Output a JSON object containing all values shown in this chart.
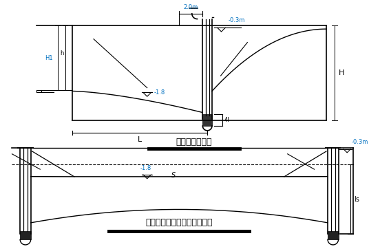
{
  "bg_color": "#ffffff",
  "line_color": "#000000",
  "blue_color": "#0070c0",
  "title1": "井点管埋设深度",
  "title2": "承压水完整井涌水量计算简图",
  "label_H1": "H1",
  "label_h": "h",
  "label_H": "H",
  "label_L": "L",
  "label_ls": "ls",
  "label_s": "S",
  "label_2m": "2.0m",
  "label_m03": "-0.3m",
  "label_4l": "4l",
  "label_18": "-1.8"
}
